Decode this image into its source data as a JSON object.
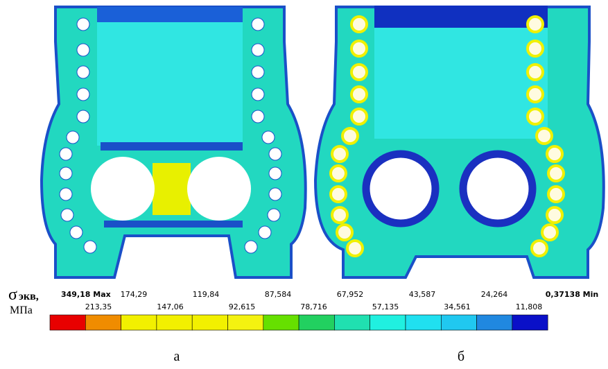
{
  "legend": {
    "symbol": "σ",
    "subscript": "экв,",
    "unit": "МПа",
    "top_labels": [
      "349,18 Max",
      "174,29",
      "119,84",
      "87,584",
      "67,952",
      "43,587",
      "24,264",
      "0,37138 Min"
    ],
    "bottom_labels": [
      "213,35",
      "147,06",
      "92,615",
      "78,716",
      "57,135",
      "34,561",
      "11,808"
    ],
    "colors": [
      "#e80000",
      "#f08c00",
      "#f2f000",
      "#f2f000",
      "#f2f000",
      "#f4f210",
      "#66e000",
      "#22d060",
      "#20e0b0",
      "#20f0e0",
      "#20e0f0",
      "#20c8f0",
      "#2088e0",
      "#0a10c8"
    ]
  },
  "captions": [
    "а",
    "б"
  ]
}
